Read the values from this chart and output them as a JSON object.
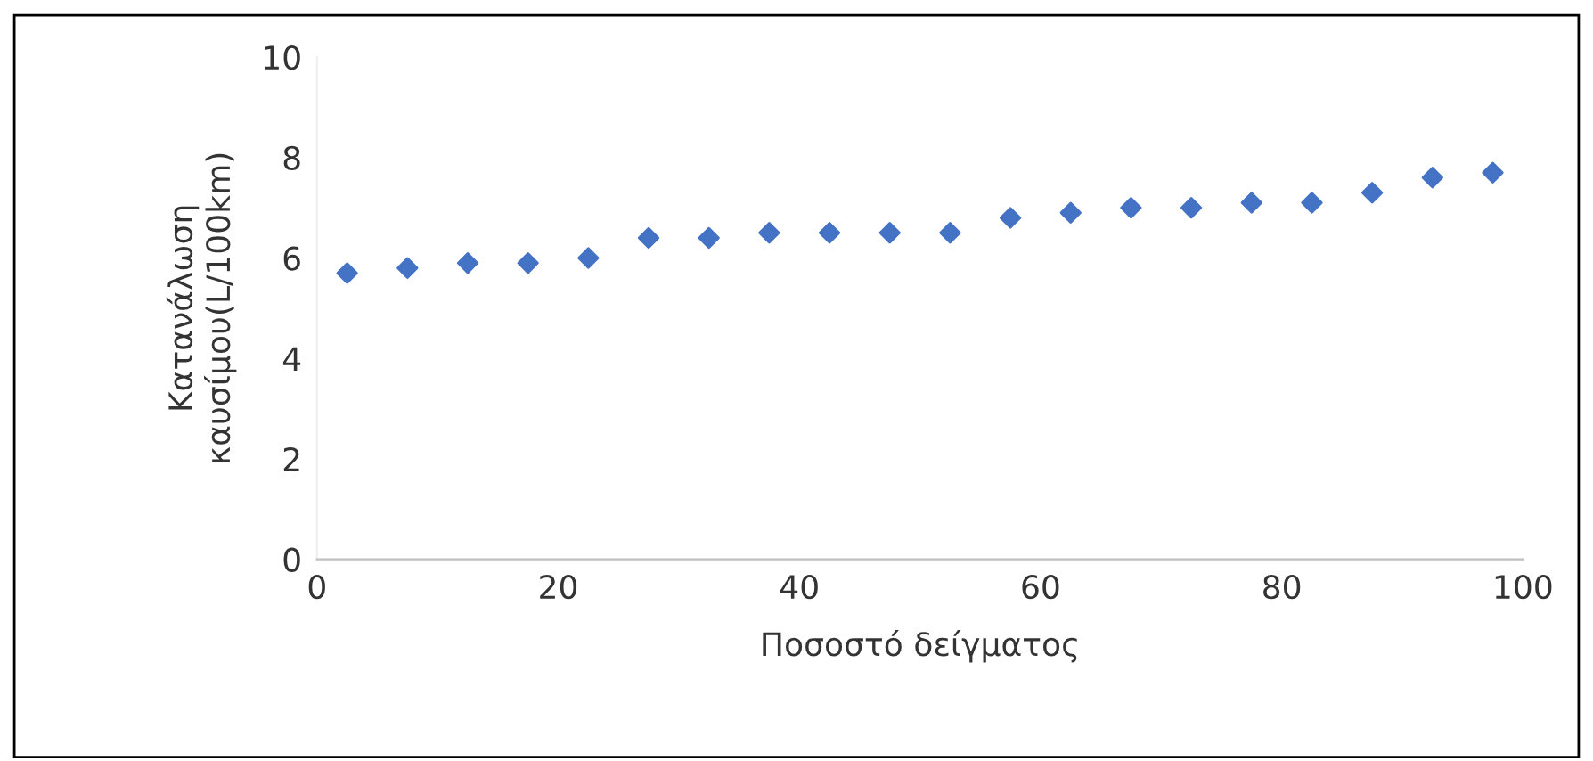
{
  "chart_data": {
    "type": "scatter",
    "xlabel": "Ποσοστό δείγματος",
    "ylabel": "Κατανάλωση\nκαυσίμου(L/100km)",
    "x": [
      2.5,
      7.5,
      12.5,
      17.5,
      22.5,
      27.5,
      32.5,
      37.5,
      42.5,
      47.5,
      52.5,
      57.5,
      62.5,
      67.5,
      72.5,
      77.5,
      82.5,
      87.5,
      92.5,
      97.5
    ],
    "series": [
      {
        "color": "#4472c4",
        "values": [
          5.7,
          5.8,
          5.9,
          5.9,
          6.0,
          6.4,
          6.4,
          6.5,
          6.5,
          6.5,
          6.5,
          6.8,
          6.9,
          7.0,
          7.0,
          7.1,
          7.1,
          7.3,
          7.6,
          7.7
        ]
      }
    ],
    "xlim": [
      0,
      100
    ],
    "xticks": [
      0,
      20,
      40,
      60,
      80,
      100
    ],
    "ylim": [
      0,
      10
    ],
    "yticks": [
      0,
      2,
      4,
      6,
      8,
      10
    ],
    "marker": "diamond",
    "grid": false,
    "legend": false
  }
}
